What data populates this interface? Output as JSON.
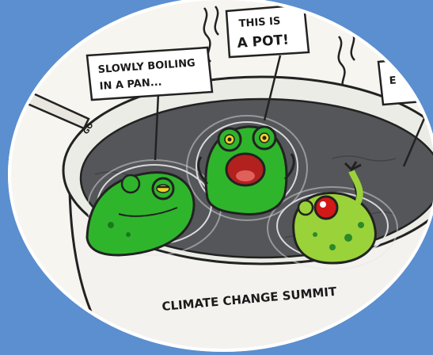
{
  "colors": {
    "background": "#5b8fcf",
    "oval": "#ffffff",
    "pot_body": "#f4f2ee",
    "water": "#55565a",
    "frog_green": "#2fb52c",
    "frog_yellow_green": "#9ad23a",
    "frog_red_eye": "#d31818",
    "ink": "#1a1a1a"
  },
  "bubbles": {
    "left_line1": "SLOWLY BOILING",
    "left_line2": "IN A PAN...",
    "middle_line1": "THIS IS",
    "middle_line2": "A POT!",
    "right_partial": "E"
  },
  "pot": {
    "label": "CLIMATE CHANGE SUMMIT",
    "rim_text": "GO"
  },
  "icons": [
    "frog-left",
    "frog-middle",
    "frog-right",
    "steam-lines"
  ]
}
